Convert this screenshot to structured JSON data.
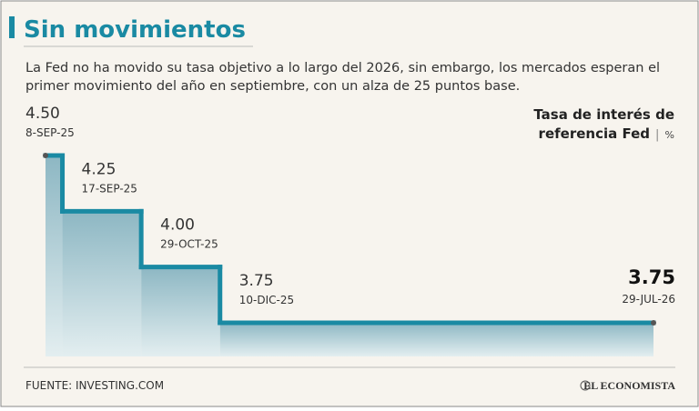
{
  "header": {
    "title": "Sin movimientos",
    "subtitle": [
      "La Fed no ha movido su tasa objetivo a lo largo del 2026, sin embargo, los mercados esperan el",
      "primer movimiento del año en septiembre, con un alza de 25 puntos base."
    ]
  },
  "chart_data": {
    "type": "step",
    "y_label": [
      "Tasa de interés de",
      "referencia Fed"
    ],
    "unit": "%",
    "categories": [
      "8-SEP-25",
      "17-SEP-25",
      "29-OCT-25",
      "10-DIC-25",
      "29-JUL-26"
    ],
    "values": [
      4.5,
      4.25,
      4,
      3.75,
      3.75
    ],
    "value_labels": [
      "4.50",
      "4.25",
      "4.00",
      "3.75",
      "3.75"
    ],
    "color": "#1a8aa3"
  },
  "footer": {
    "source": "FUENTE: INVESTING.COM",
    "brand": "EL ECONOMISTA"
  }
}
